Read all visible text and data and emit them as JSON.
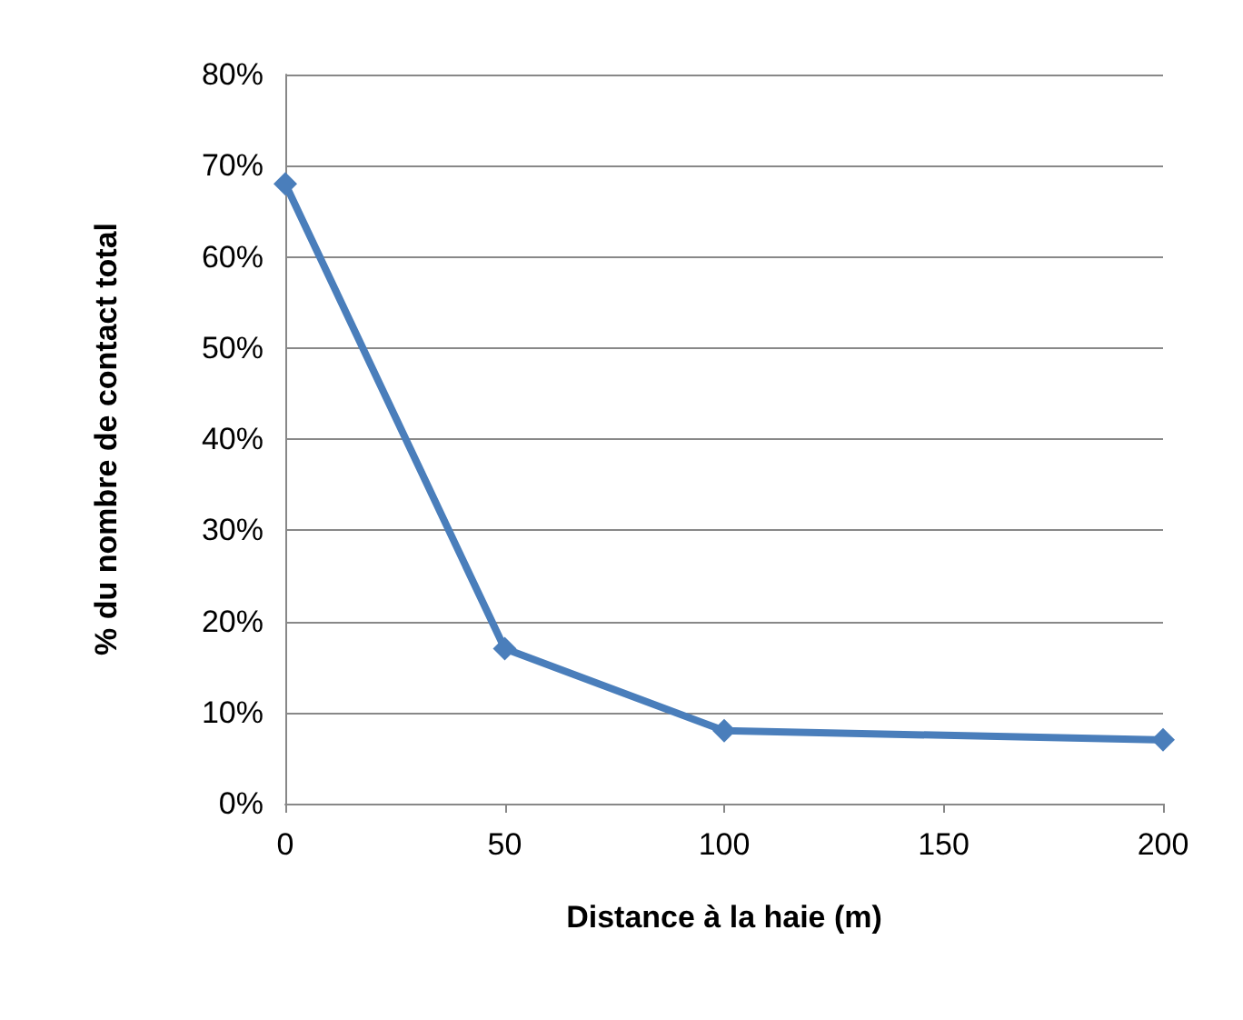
{
  "chart_data": {
    "type": "line",
    "xlabel": "Distance à la haie (m)",
    "ylabel": "% du nombre de contact total",
    "x": [
      0,
      50,
      100,
      200
    ],
    "series": [
      {
        "color": "#4a7ebb",
        "values": [
          68,
          17,
          8,
          7
        ]
      }
    ],
    "xlim": [
      0,
      200
    ],
    "xticks": [
      0,
      50,
      100,
      150,
      200
    ],
    "ylim": [
      0,
      80
    ],
    "yticks": [
      {
        "value": 0,
        "label": "0%"
      },
      {
        "value": 10,
        "label": "10%"
      },
      {
        "value": 20,
        "label": "20%"
      },
      {
        "value": 30,
        "label": "30%"
      },
      {
        "value": 40,
        "label": "40%"
      },
      {
        "value": 50,
        "label": "50%"
      },
      {
        "value": 60,
        "label": "60%"
      },
      {
        "value": 70,
        "label": "70%"
      },
      {
        "value": 80,
        "label": "80%"
      }
    ],
    "grid": "y",
    "marker": "diamond",
    "line_style": "solid"
  }
}
